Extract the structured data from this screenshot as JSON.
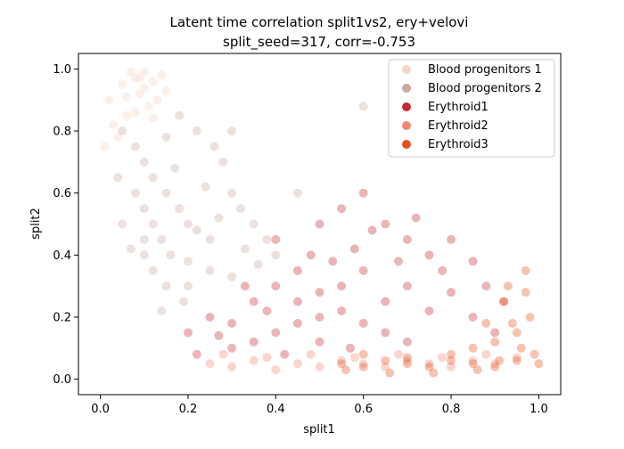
{
  "chart_data": {
    "type": "scatter",
    "title_line1": "Latent time correlation split1vs2, ery+velovi",
    "title_line2": "split_seed=317, corr=-0.753",
    "xlabel": "split1",
    "ylabel": "split2",
    "xlim": [
      -0.05,
      1.05
    ],
    "ylim": [
      -0.05,
      1.05
    ],
    "xticks": [
      "0.0",
      "0.2",
      "0.4",
      "0.6",
      "0.8",
      "1.0"
    ],
    "yticks": [
      "0.0",
      "0.2",
      "0.4",
      "0.6",
      "0.8",
      "1.0"
    ],
    "grid": false,
    "legend_position": "top-right",
    "point_alpha": 0.35,
    "series": [
      {
        "name": "Blood progenitors 1",
        "color": "#f6d5c4",
        "points": [
          [
            0.02,
            0.9
          ],
          [
            0.05,
            0.95
          ],
          [
            0.08,
            0.97
          ],
          [
            0.1,
            0.99
          ],
          [
            0.12,
            0.96
          ],
          [
            0.06,
            0.85
          ],
          [
            0.09,
            0.92
          ],
          [
            0.13,
            0.9
          ],
          [
            0.04,
            0.78
          ],
          [
            0.11,
            0.88
          ],
          [
            0.07,
            0.99
          ],
          [
            0.15,
            0.93
          ],
          [
            0.03,
            0.82
          ],
          [
            0.1,
            0.94
          ],
          [
            0.08,
            0.86
          ],
          [
            0.14,
            0.98
          ],
          [
            0.06,
            0.91
          ],
          [
            0.12,
            0.84
          ],
          [
            0.01,
            0.75
          ],
          [
            0.09,
            0.97
          ]
        ]
      },
      {
        "name": "Blood progenitors 2",
        "color": "#c9a99a",
        "points": [
          [
            0.05,
            0.8
          ],
          [
            0.08,
            0.75
          ],
          [
            0.1,
            0.7
          ],
          [
            0.12,
            0.65
          ],
          [
            0.15,
            0.6
          ],
          [
            0.18,
            0.55
          ],
          [
            0.2,
            0.5
          ],
          [
            0.22,
            0.48
          ],
          [
            0.25,
            0.45
          ],
          [
            0.08,
            0.6
          ],
          [
            0.1,
            0.55
          ],
          [
            0.12,
            0.5
          ],
          [
            0.14,
            0.45
          ],
          [
            0.16,
            0.4
          ],
          [
            0.2,
            0.38
          ],
          [
            0.25,
            0.35
          ],
          [
            0.3,
            0.33
          ],
          [
            0.05,
            0.5
          ],
          [
            0.07,
            0.42
          ],
          [
            0.1,
            0.4
          ],
          [
            0.3,
            0.6
          ],
          [
            0.28,
            0.7
          ],
          [
            0.22,
            0.8
          ],
          [
            0.18,
            0.85
          ],
          [
            0.15,
            0.78
          ],
          [
            0.32,
            0.55
          ],
          [
            0.35,
            0.5
          ],
          [
            0.38,
            0.45
          ],
          [
            0.4,
            0.4
          ],
          [
            0.2,
            0.3
          ],
          [
            0.15,
            0.3
          ],
          [
            0.12,
            0.35
          ],
          [
            0.1,
            0.45
          ],
          [
            0.17,
            0.68
          ],
          [
            0.24,
            0.62
          ],
          [
            0.27,
            0.52
          ],
          [
            0.33,
            0.42
          ],
          [
            0.36,
            0.37
          ],
          [
            0.19,
            0.25
          ],
          [
            0.14,
            0.22
          ],
          [
            0.45,
            0.6
          ],
          [
            0.6,
            0.88
          ],
          [
            0.04,
            0.65
          ],
          [
            0.26,
            0.75
          ],
          [
            0.3,
            0.8
          ]
        ]
      },
      {
        "name": "Erythroid1",
        "color": "#c62a32",
        "points": [
          [
            0.2,
            0.15
          ],
          [
            0.25,
            0.2
          ],
          [
            0.3,
            0.18
          ],
          [
            0.35,
            0.25
          ],
          [
            0.4,
            0.3
          ],
          [
            0.45,
            0.35
          ],
          [
            0.5,
            0.28
          ],
          [
            0.55,
            0.3
          ],
          [
            0.6,
            0.35
          ],
          [
            0.65,
            0.25
          ],
          [
            0.7,
            0.3
          ],
          [
            0.75,
            0.22
          ],
          [
            0.8,
            0.28
          ],
          [
            0.85,
            0.2
          ],
          [
            0.9,
            0.15
          ],
          [
            0.3,
            0.1
          ],
          [
            0.35,
            0.12
          ],
          [
            0.4,
            0.15
          ],
          [
            0.45,
            0.18
          ],
          [
            0.5,
            0.2
          ],
          [
            0.55,
            0.22
          ],
          [
            0.6,
            0.18
          ],
          [
            0.65,
            0.15
          ],
          [
            0.7,
            0.12
          ],
          [
            0.4,
            0.45
          ],
          [
            0.5,
            0.5
          ],
          [
            0.55,
            0.55
          ],
          [
            0.6,
            0.6
          ],
          [
            0.65,
            0.5
          ],
          [
            0.7,
            0.45
          ],
          [
            0.75,
            0.4
          ],
          [
            0.8,
            0.45
          ],
          [
            0.85,
            0.38
          ],
          [
            0.45,
            0.25
          ],
          [
            0.5,
            0.12
          ],
          [
            0.33,
            0.3
          ],
          [
            0.38,
            0.22
          ],
          [
            0.58,
            0.42
          ],
          [
            0.62,
            0.48
          ],
          [
            0.68,
            0.38
          ],
          [
            0.72,
            0.52
          ],
          [
            0.78,
            0.35
          ],
          [
            0.88,
            0.3
          ],
          [
            0.92,
            0.25
          ],
          [
            0.48,
            0.4
          ],
          [
            0.53,
            0.38
          ],
          [
            0.27,
            0.14
          ],
          [
            0.22,
            0.08
          ],
          [
            0.42,
            0.08
          ],
          [
            0.57,
            0.1
          ]
        ]
      },
      {
        "name": "Erythroid2",
        "color": "#f08a76",
        "points": [
          [
            0.25,
            0.05
          ],
          [
            0.3,
            0.04
          ],
          [
            0.35,
            0.06
          ],
          [
            0.4,
            0.03
          ],
          [
            0.45,
            0.05
          ],
          [
            0.5,
            0.04
          ],
          [
            0.55,
            0.06
          ],
          [
            0.6,
            0.05
          ],
          [
            0.65,
            0.04
          ],
          [
            0.7,
            0.06
          ],
          [
            0.75,
            0.05
          ],
          [
            0.8,
            0.04
          ],
          [
            0.85,
            0.06
          ],
          [
            0.9,
            0.05
          ],
          [
            0.28,
            0.08
          ],
          [
            0.38,
            0.07
          ],
          [
            0.48,
            0.08
          ],
          [
            0.58,
            0.07
          ],
          [
            0.68,
            0.08
          ],
          [
            0.78,
            0.07
          ],
          [
            0.88,
            0.08
          ],
          [
            0.95,
            0.07
          ]
        ]
      },
      {
        "name": "Erythroid3",
        "color": "#e8521f",
        "points": [
          [
            0.55,
            0.05
          ],
          [
            0.6,
            0.04
          ],
          [
            0.65,
            0.06
          ],
          [
            0.7,
            0.05
          ],
          [
            0.75,
            0.04
          ],
          [
            0.8,
            0.06
          ],
          [
            0.85,
            0.05
          ],
          [
            0.9,
            0.04
          ],
          [
            0.95,
            0.06
          ],
          [
            1.0,
            0.05
          ],
          [
            0.6,
            0.08
          ],
          [
            0.7,
            0.07
          ],
          [
            0.8,
            0.08
          ],
          [
            0.85,
            0.1
          ],
          [
            0.9,
            0.12
          ],
          [
            0.95,
            0.15
          ],
          [
            0.98,
            0.2
          ],
          [
            0.92,
            0.25
          ],
          [
            0.88,
            0.18
          ],
          [
            0.93,
            0.3
          ],
          [
            0.97,
            0.35
          ],
          [
            0.96,
            0.1
          ],
          [
            0.99,
            0.08
          ],
          [
            0.91,
            0.06
          ],
          [
            0.86,
            0.03
          ],
          [
            0.76,
            0.02
          ],
          [
            0.66,
            0.02
          ],
          [
            0.56,
            0.03
          ],
          [
            0.97,
            0.28
          ],
          [
            0.94,
            0.18
          ]
        ]
      }
    ]
  }
}
